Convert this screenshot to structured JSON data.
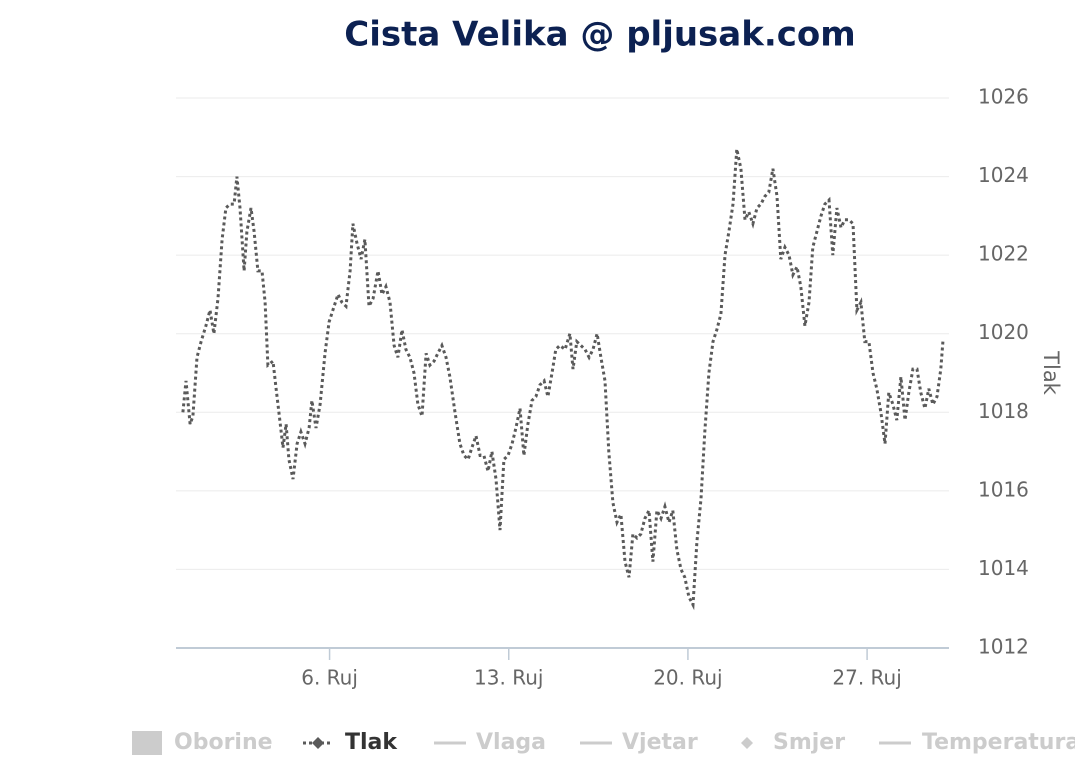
{
  "chart_data": {
    "type": "line",
    "title": "Cista Velika @ pljusak.com",
    "y_axis_title": "Tlak",
    "xlim": [
      0,
      30.2
    ],
    "xticks": [
      {
        "value": 6,
        "label": "6. Ruj"
      },
      {
        "value": 13,
        "label": "13. Ruj"
      },
      {
        "value": 20,
        "label": "20. Ruj"
      },
      {
        "value": 27,
        "label": "27. Ruj"
      }
    ],
    "ylim": [
      1012,
      1026
    ],
    "yticks": [
      1012,
      1014,
      1016,
      1018,
      1020,
      1022,
      1024,
      1026
    ],
    "grid": true,
    "x": [
      0.27,
      0.39,
      0.55,
      0.66,
      0.82,
      0.98,
      1.17,
      1.33,
      1.48,
      1.64,
      1.8,
      1.95,
      2.11,
      2.27,
      2.38,
      2.5,
      2.66,
      2.77,
      2.93,
      3.05,
      3.2,
      3.36,
      3.48,
      3.59,
      3.79,
      3.91,
      4.02,
      4.18,
      4.3,
      4.41,
      4.57,
      4.73,
      4.88,
      5.04,
      5.2,
      5.31,
      5.47,
      5.63,
      5.82,
      5.98,
      6.13,
      6.33,
      6.48,
      6.64,
      6.8,
      6.91,
      7.07,
      7.23,
      7.38,
      7.54,
      7.7,
      7.89,
      8.05,
      8.2,
      8.36,
      8.52,
      8.67,
      8.83,
      8.98,
      9.14,
      9.3,
      9.45,
      9.61,
      9.77,
      9.92,
      10.08,
      10.23,
      10.39,
      10.55,
      10.7,
      10.9,
      11.09,
      11.25,
      11.41,
      11.56,
      11.72,
      11.88,
      12.03,
      12.19,
      12.34,
      12.5,
      12.66,
      12.81,
      12.97,
      13.13,
      13.28,
      13.44,
      13.59,
      13.75,
      13.91,
      14.06,
      14.22,
      14.38,
      14.53,
      14.69,
      14.84,
      15.0,
      15.2,
      15.39,
      15.51,
      15.66,
      15.82,
      15.98,
      16.14,
      16.29,
      16.45,
      16.6,
      16.76,
      16.91,
      17.07,
      17.23,
      17.38,
      17.54,
      17.7,
      17.85,
      18.01,
      18.16,
      18.32,
      18.48,
      18.63,
      18.79,
      18.95,
      19.1,
      19.26,
      19.41,
      19.57,
      19.73,
      19.88,
      20.04,
      20.2,
      20.35,
      20.51,
      20.66,
      20.82,
      20.98,
      21.13,
      21.29,
      21.45,
      21.6,
      21.76,
      21.91,
      22.07,
      22.23,
      22.38,
      22.54,
      22.7,
      22.85,
      23.01,
      23.16,
      23.32,
      23.48,
      23.63,
      23.79,
      23.95,
      24.1,
      24.26,
      24.41,
      24.57,
      24.73,
      24.88,
      25.04,
      25.2,
      25.35,
      25.51,
      25.66,
      25.82,
      25.98,
      26.13,
      26.29,
      26.45,
      26.6,
      26.76,
      26.91,
      27.07,
      27.23,
      27.38,
      27.54,
      27.7,
      27.85,
      28.01,
      28.16,
      28.32,
      28.48,
      28.63,
      28.79,
      28.95,
      29.1,
      29.26,
      29.41,
      29.57,
      29.73,
      29.88,
      29.96
    ],
    "series": [
      {
        "name": "Tlak",
        "color": "#5a5a5a",
        "values": [
          1018.0,
          1018.8,
          1017.7,
          1017.9,
          1019.4,
          1019.8,
          1020.2,
          1020.6,
          1020.0,
          1020.9,
          1022.4,
          1023.2,
          1023.3,
          1023.3,
          1024.0,
          1023.2,
          1021.6,
          1022.6,
          1023.2,
          1022.6,
          1021.6,
          1021.6,
          1020.8,
          1019.2,
          1019.3,
          1018.6,
          1018.0,
          1017.1,
          1017.7,
          1016.8,
          1016.3,
          1017.2,
          1017.5,
          1017.2,
          1017.6,
          1018.3,
          1017.6,
          1018.2,
          1019.5,
          1020.3,
          1020.6,
          1021.0,
          1020.8,
          1020.7,
          1021.6,
          1022.8,
          1022.3,
          1021.9,
          1022.4,
          1020.7,
          1020.9,
          1021.6,
          1021.0,
          1021.2,
          1020.8,
          1019.7,
          1019.4,
          1020.1,
          1019.6,
          1019.4,
          1019.0,
          1018.2,
          1017.9,
          1019.5,
          1019.2,
          1019.3,
          1019.5,
          1019.7,
          1019.4,
          1018.9,
          1018.0,
          1017.2,
          1016.9,
          1016.8,
          1017.1,
          1017.4,
          1016.9,
          1016.9,
          1016.5,
          1017.0,
          1016.3,
          1015.0,
          1016.8,
          1016.9,
          1017.2,
          1017.6,
          1018.1,
          1016.9,
          1017.7,
          1018.3,
          1018.4,
          1018.7,
          1018.8,
          1018.4,
          1019.0,
          1019.6,
          1019.7,
          1019.6,
          1020.0,
          1019.1,
          1019.8,
          1019.7,
          1019.6,
          1019.4,
          1019.6,
          1020.0,
          1019.4,
          1018.8,
          1017.0,
          1015.7,
          1015.2,
          1015.4,
          1014.2,
          1013.8,
          1014.9,
          1014.8,
          1014.9,
          1015.3,
          1015.5,
          1014.2,
          1015.5,
          1015.3,
          1015.6,
          1015.2,
          1015.5,
          1014.5,
          1014.0,
          1013.8,
          1013.3,
          1013.1,
          1014.7,
          1015.8,
          1017.5,
          1019.0,
          1019.8,
          1020.1,
          1020.5,
          1022.0,
          1022.6,
          1023.3,
          1024.7,
          1024.2,
          1022.9,
          1023.1,
          1022.8,
          1023.2,
          1023.3,
          1023.5,
          1023.6,
          1024.2,
          1023.5,
          1021.9,
          1022.2,
          1022.0,
          1021.5,
          1021.7,
          1021.2,
          1020.2,
          1020.8,
          1022.2,
          1022.6,
          1023.0,
          1023.3,
          1023.4,
          1022.0,
          1023.2,
          1022.7,
          1022.9,
          1022.9,
          1022.8,
          1020.6,
          1020.8,
          1019.8,
          1019.8,
          1019.0,
          1018.6,
          1018.0,
          1017.2,
          1018.5,
          1018.2,
          1017.8,
          1018.9,
          1017.8,
          1018.5,
          1019.1,
          1019.1,
          1018.5,
          1018.1,
          1018.6,
          1018.2,
          1018.4,
          1019.1,
          1019.8
        ]
      }
    ],
    "hidden_series": [
      {
        "name": "Oborine",
        "color": "#cccccc"
      },
      {
        "name": "Vlaga",
        "color": "#cccccc"
      },
      {
        "name": "Vjetar",
        "color": "#cccccc"
      },
      {
        "name": "Smjer",
        "color": "#cccccc"
      },
      {
        "name": "Temperatura",
        "color": "#cccccc"
      }
    ]
  }
}
